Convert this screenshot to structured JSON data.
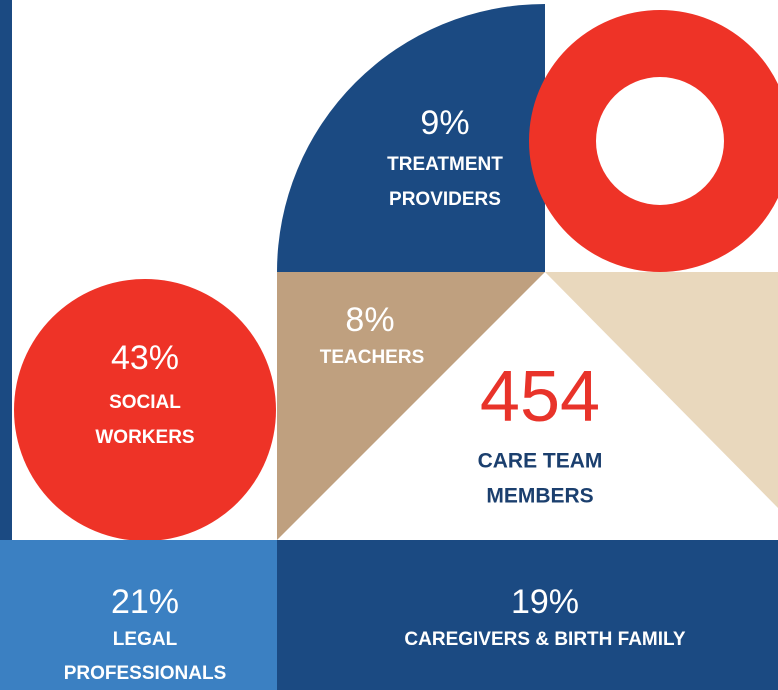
{
  "segments": [
    {
      "value": "9%",
      "label_lines": [
        "TREATMENT",
        "PROVIDERS"
      ]
    },
    {
      "value": "8%",
      "label_lines": [
        "TEACHERS"
      ]
    },
    {
      "value": "43%",
      "label_lines": [
        "SOCIAL",
        "WORKERS"
      ]
    },
    {
      "value": "21%",
      "label_lines": [
        "LEGAL",
        "PROFESSIONALS"
      ]
    },
    {
      "value": "19%",
      "label_lines": [
        "CAREGIVERS & BIRTH FAMILY"
      ]
    }
  ],
  "total": {
    "value": "454",
    "label_lines": [
      "CARE TEAM",
      "MEMBERS"
    ]
  }
}
